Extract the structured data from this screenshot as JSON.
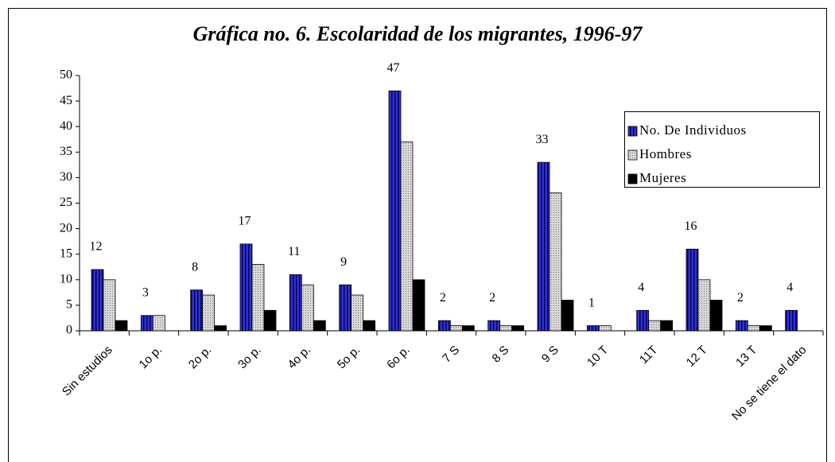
{
  "chart_data": {
    "type": "bar",
    "title": "Gráfica no. 6. Escolaridad de los migrantes, 1996-97",
    "categories": [
      "Sin estudios",
      "1o p.",
      "2o p.",
      "3o p.",
      "4o p.",
      "5o p.",
      "6o p.",
      "7 S",
      "8 S",
      "9 S",
      "10 T",
      "11T",
      "12 T",
      "13 T",
      "No se tiene el dato"
    ],
    "series": [
      {
        "name": "No. De Individuos",
        "color": "#3333cc",
        "data_labels": true,
        "values": [
          12,
          3,
          8,
          17,
          11,
          9,
          47,
          2,
          2,
          33,
          1,
          4,
          16,
          2,
          4
        ]
      },
      {
        "name": "Hombres",
        "color": "#c0c0c0",
        "values": [
          10,
          3,
          7,
          13,
          9,
          7,
          37,
          1,
          1,
          27,
          1,
          2,
          10,
          1,
          0
        ]
      },
      {
        "name": "Mujeres",
        "color": "#000000",
        "values": [
          2,
          0,
          1,
          4,
          2,
          2,
          10,
          1,
          1,
          6,
          0,
          2,
          6,
          1,
          0
        ]
      }
    ],
    "ylim": [
      0,
      50
    ],
    "yticks": [
      0,
      5,
      10,
      15,
      20,
      25,
      30,
      35,
      40,
      45,
      50
    ],
    "legend": "right"
  }
}
